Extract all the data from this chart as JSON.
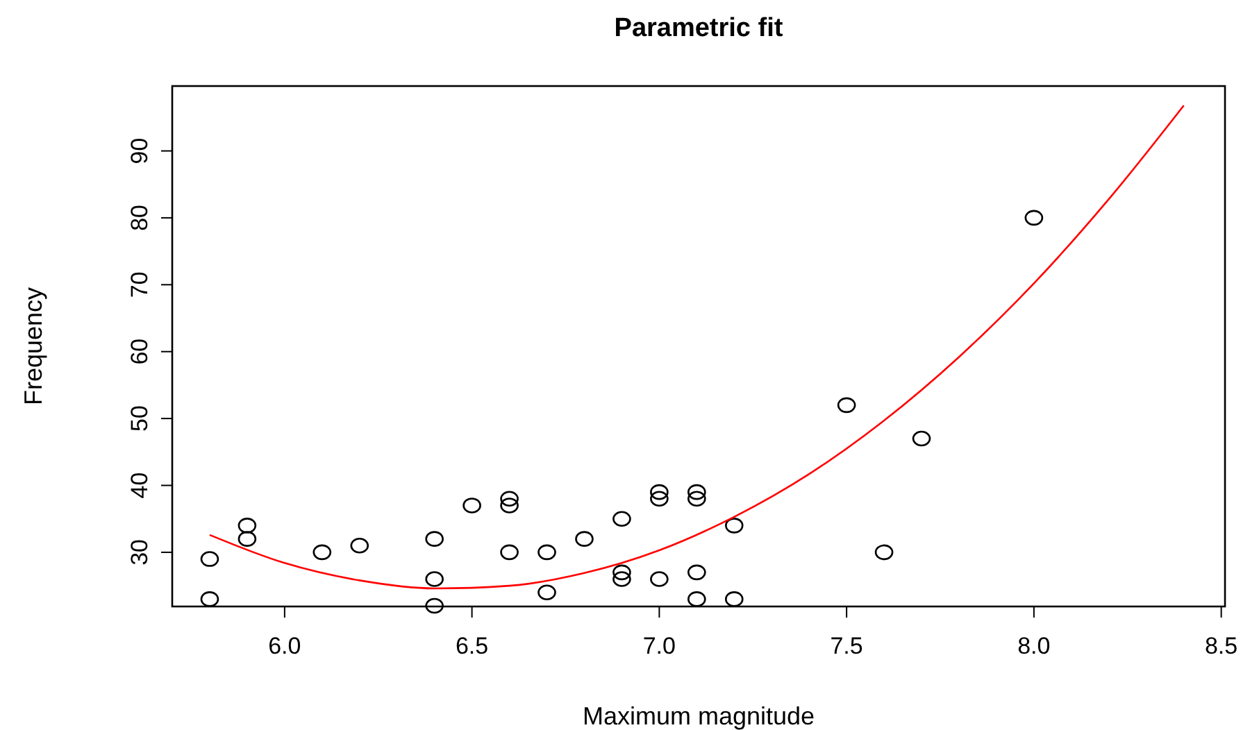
{
  "chart_data": {
    "type": "scatter",
    "title": "Parametric fit",
    "xlabel": "Maximum magnitude",
    "ylabel": "Frequency",
    "xlim": [
      5.7,
      8.51
    ],
    "ylim": [
      21.9,
      99.7
    ],
    "xticks": [
      {
        "value": 6.0,
        "label": "6.0"
      },
      {
        "value": 6.5,
        "label": "6.5"
      },
      {
        "value": 7.0,
        "label": "7.0"
      },
      {
        "value": 7.5,
        "label": "7.5"
      },
      {
        "value": 8.0,
        "label": "8.0"
      },
      {
        "value": 8.5,
        "label": "8.5"
      }
    ],
    "yticks": [
      30,
      40,
      50,
      60,
      70,
      80,
      90
    ],
    "grid": false,
    "marker": "circle",
    "series": [
      {
        "color": "#000000",
        "x": [
          5.8,
          5.8,
          5.9,
          5.9,
          6.1,
          6.2,
          6.4,
          6.4,
          6.4,
          6.5,
          6.6,
          6.6,
          6.6,
          6.7,
          6.7,
          6.8,
          6.9,
          6.9,
          6.9,
          7.0,
          7.0,
          7.0,
          7.1,
          7.1,
          7.1,
          7.1,
          7.2,
          7.2,
          7.5,
          7.6,
          7.7,
          8.0
        ],
        "values": [
          23,
          29,
          34,
          32,
          30,
          31,
          32,
          26,
          22,
          37,
          38,
          37,
          30,
          30,
          24,
          32,
          35,
          27,
          26,
          39,
          38,
          26,
          39,
          38,
          27,
          23,
          34,
          23,
          52,
          30,
          47,
          80
        ]
      },
      {
        "type": "line",
        "color": "#ff0000",
        "marker": "none",
        "line_style": "solid",
        "x": [
          5.8,
          6.0,
          6.2,
          6.4,
          6.6,
          6.8,
          7.0,
          7.2,
          7.4,
          7.6,
          7.8,
          8.0,
          8.2,
          8.4
        ],
        "values": [
          32.6,
          28.4,
          25.8,
          24.6,
          25.0,
          26.9,
          30.3,
          35.3,
          41.7,
          49.7,
          59.2,
          70.2,
          82.8,
          96.8
        ]
      }
    ]
  }
}
